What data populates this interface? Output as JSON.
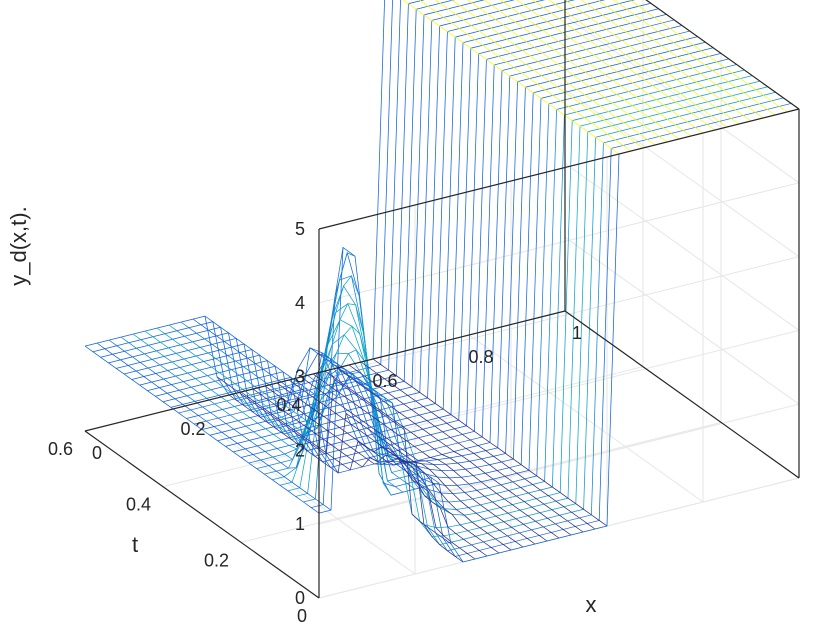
{
  "chart_data": {
    "type": "surface",
    "style": "mesh",
    "colormap": "parula",
    "grid": true,
    "xlabel": "x",
    "tlabel": "t",
    "zlabel": "y_d(x,t).",
    "xlim": [
      0,
      1
    ],
    "tlim": [
      0,
      0.6
    ],
    "zlim": [
      0,
      5
    ],
    "xticks": [
      "0",
      "0.2",
      "0.4",
      "0.6",
      "0.8",
      "1"
    ],
    "tticks": [
      "0",
      "0.2",
      "0.4",
      "0.6"
    ],
    "zticks": [
      "0",
      "1",
      "2",
      "3",
      "4",
      "5"
    ],
    "mesh_resolution": {
      "x_lines": 40,
      "t_lines": 30
    },
    "surface_description": {
      "start_pulse": {
        "x": 0.1,
        "t_start": 0.0,
        "t_end": 0.2,
        "peak_value": 4.8
      },
      "middle_hump": {
        "x_range": [
          0.18,
          0.28
        ],
        "t_start": 0.18,
        "value": 1.9
      },
      "left_plateau": {
        "value": 1.15,
        "x_range": [
          0,
          0.28
        ],
        "t_range": [
          0,
          0.6
        ]
      },
      "right_plateau": {
        "value": 5.0,
        "x_range": [
          0.62,
          1.0
        ],
        "t_range": [
          0,
          0.6
        ]
      },
      "trough_value": 0.0
    }
  }
}
